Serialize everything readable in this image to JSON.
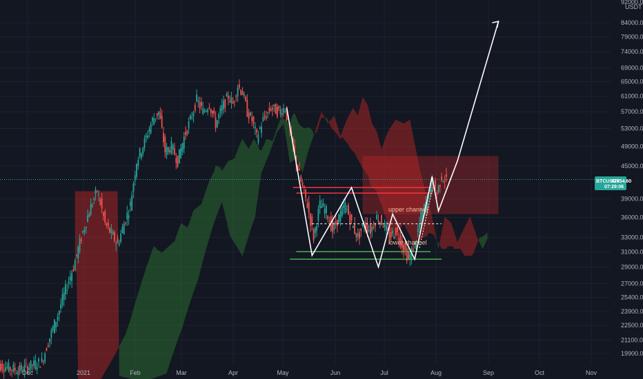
{
  "chart_data": {
    "type": "candlestick",
    "symbol": "BTCUSDT",
    "quote_label": "USDT",
    "last_price": "42454.60",
    "countdown": "07:29:06",
    "top_clipped_label": "92000.00",
    "y_ticks": [
      "84000.00",
      "79000.00",
      "74000.00",
      "69000.00",
      "65000.00",
      "61000.00",
      "57000.00",
      "53000.00",
      "49000.00",
      "45000.00",
      "39000.00",
      "36000.00",
      "33000.00",
      "31000.00",
      "29000.00",
      "27000.00",
      "25400.00",
      "23900.00",
      "22500.00",
      "21100.00",
      "19900.00"
    ],
    "x_ticks": [
      "Dec",
      "2021",
      "Feb",
      "Mar",
      "Apr",
      "May",
      "Jun",
      "Jul",
      "Aug",
      "Sep",
      "Oct",
      "Nov"
    ],
    "ylim": [
      18700,
      92000
    ],
    "y_scale": "log",
    "annotations": {
      "upper": "upper channel",
      "lower": "lower channel"
    },
    "levels": [
      {
        "price": 41000,
        "color": "#f23645"
      },
      {
        "price": 40000,
        "color": "#f23645"
      },
      {
        "price": 35000,
        "color": "#ffffff",
        "dashed": true
      },
      {
        "price": 31000,
        "color": "#4caf50"
      },
      {
        "price": 30000,
        "color": "#4caf50"
      }
    ],
    "colors": {
      "background": "#131722",
      "bull": "#26a69a",
      "bear": "#ef5350",
      "cloud_bull": "#2e7d32",
      "cloud_bear": "#c62828",
      "price_line": "#26a69a",
      "drawing": "#ffffff"
    }
  }
}
